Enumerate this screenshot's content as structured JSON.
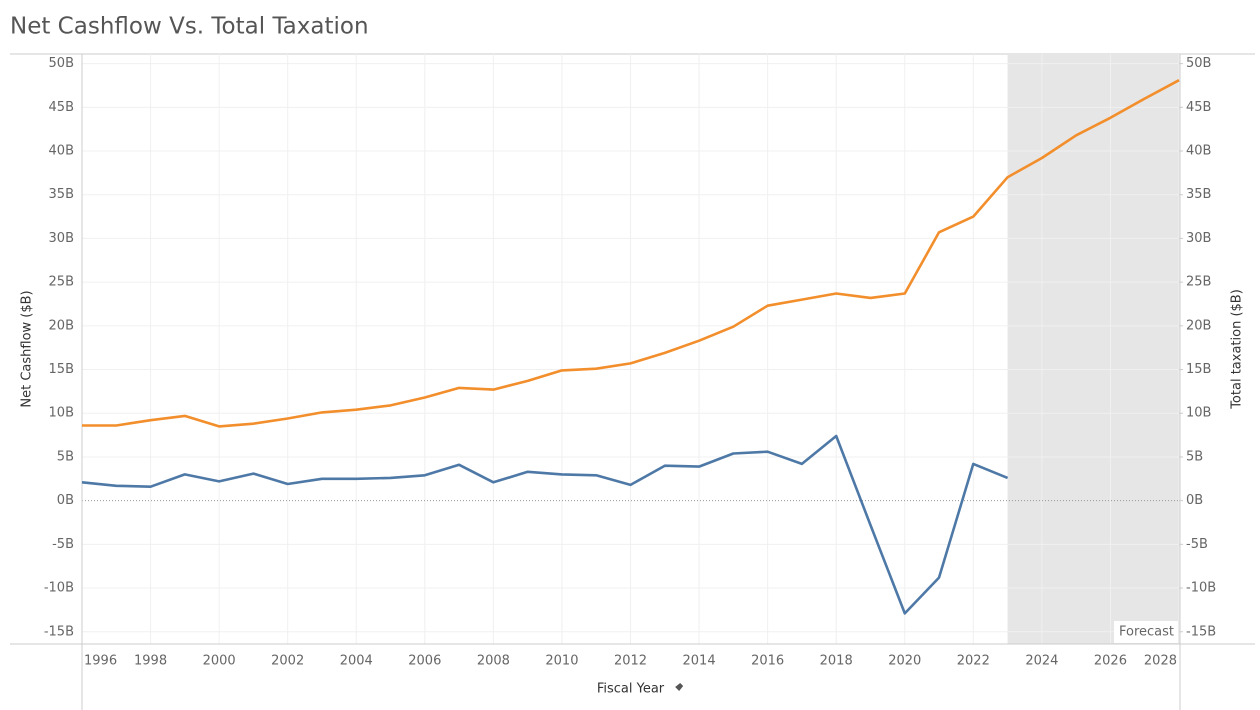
{
  "chart_data": {
    "type": "line",
    "title": "Net Cashflow Vs. Total Taxation",
    "xlabel": "Fiscal Year",
    "ylabel": "Net Cashflow  ($B)",
    "y2label": "Total taxation ($B)",
    "x": [
      1996,
      1997,
      1998,
      1999,
      2000,
      2001,
      2002,
      2003,
      2004,
      2005,
      2006,
      2007,
      2008,
      2009,
      2010,
      2011,
      2012,
      2013,
      2014,
      2015,
      2016,
      2017,
      2018,
      2019,
      2020,
      2021,
      2022,
      2023,
      2024,
      2025,
      2026,
      2027,
      2028
    ],
    "series": [
      {
        "color": "#4e79a7",
        "values": [
          2.1,
          1.7,
          1.6,
          3.0,
          2.2,
          3.1,
          1.9,
          2.5,
          2.5,
          2.6,
          2.9,
          4.1,
          2.1,
          3.3,
          3.0,
          2.9,
          1.8,
          4.0,
          3.9,
          5.4,
          5.6,
          4.2,
          7.4,
          -2.8,
          -12.9,
          -8.8,
          4.2,
          2.6,
          null,
          null,
          null,
          null,
          null
        ]
      },
      {
        "color": "#f28e2b",
        "axis": "y2",
        "values": [
          8.6,
          8.6,
          9.2,
          9.7,
          8.5,
          8.8,
          9.4,
          10.1,
          10.4,
          10.9,
          11.8,
          12.9,
          12.7,
          13.7,
          14.9,
          15.1,
          15.7,
          16.9,
          18.3,
          19.9,
          22.3,
          23.0,
          23.7,
          23.2,
          23.7,
          30.7,
          32.5,
          37.0,
          39.2,
          41.8,
          43.8,
          46.0,
          48.1
        ]
      }
    ],
    "xlim": [
      1996,
      2028
    ],
    "xticks": [
      1996,
      1998,
      2000,
      2002,
      2004,
      2006,
      2008,
      2010,
      2012,
      2014,
      2016,
      2018,
      2020,
      2022,
      2024,
      2026,
      2028
    ],
    "ylim": [
      -16.4,
      51.1
    ],
    "yticks": [
      {
        "value": 50,
        "label": "50B"
      },
      {
        "value": 45,
        "label": "45B"
      },
      {
        "value": 40,
        "label": "40B"
      },
      {
        "value": 35,
        "label": "35B"
      },
      {
        "value": 30,
        "label": "30B"
      },
      {
        "value": 25,
        "label": "25B"
      },
      {
        "value": 20,
        "label": "20B"
      },
      {
        "value": 15,
        "label": "15B"
      },
      {
        "value": 10,
        "label": "10B"
      },
      {
        "value": 5,
        "label": "5B"
      },
      {
        "value": 0,
        "label": "0B"
      },
      {
        "value": -5,
        "label": "-5B"
      },
      {
        "value": -10,
        "label": "-10B"
      },
      {
        "value": -15,
        "label": "-15B"
      }
    ],
    "y2lim": [
      -16.4,
      51.1
    ],
    "y2ticks": [
      {
        "value": 50,
        "label": "50B"
      },
      {
        "value": 45,
        "label": "45B"
      },
      {
        "value": 40,
        "label": "40B"
      },
      {
        "value": 35,
        "label": "35B"
      },
      {
        "value": 30,
        "label": "30B"
      },
      {
        "value": 25,
        "label": "25B"
      },
      {
        "value": 20,
        "label": "20B"
      },
      {
        "value": 15,
        "label": "15B"
      },
      {
        "value": 10,
        "label": "10B"
      },
      {
        "value": 5,
        "label": "5B"
      },
      {
        "value": 0,
        "label": "0B"
      },
      {
        "value": -5,
        "label": "-5B"
      },
      {
        "value": -10,
        "label": "-10B"
      },
      {
        "value": -15,
        "label": "-15B"
      }
    ],
    "grid": true,
    "forecast": {
      "label": "Forecast",
      "start": 2023
    }
  }
}
